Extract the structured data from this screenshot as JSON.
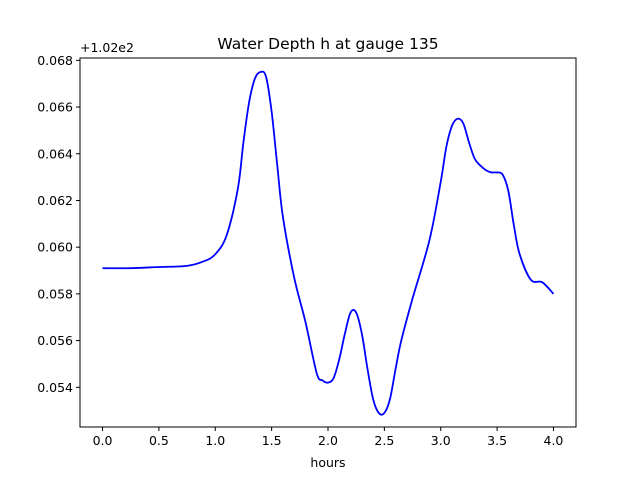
{
  "chart_data": {
    "type": "line",
    "title": "Water Depth h at gauge 135",
    "xlabel": "hours",
    "ylabel": "",
    "offset_label": "+1.02e2",
    "xlim": [
      -0.2,
      4.2
    ],
    "ylim": [
      0.0523,
      0.0681
    ],
    "xticks": [
      0.0,
      0.5,
      1.0,
      1.5,
      2.0,
      2.5,
      3.0,
      3.5,
      4.0
    ],
    "xtick_labels": [
      "0.0",
      "0.5",
      "1.0",
      "1.5",
      "2.0",
      "2.5",
      "3.0",
      "3.5",
      "4.0"
    ],
    "yticks": [
      0.054,
      0.056,
      0.058,
      0.06,
      0.062,
      0.064,
      0.066,
      0.068
    ],
    "ytick_labels": [
      "0.054",
      "0.056",
      "0.058",
      "0.060",
      "0.062",
      "0.064",
      "0.066",
      "0.068"
    ],
    "grid": false,
    "series": [
      {
        "color": "#0000ff",
        "x": [
          0.0,
          0.25,
          0.5,
          0.75,
          0.9,
          1.0,
          1.1,
          1.2,
          1.25,
          1.3,
          1.35,
          1.4,
          1.45,
          1.5,
          1.55,
          1.6,
          1.7,
          1.8,
          1.9,
          1.95,
          2.0,
          2.05,
          2.1,
          2.15,
          2.2,
          2.25,
          2.3,
          2.35,
          2.4,
          2.45,
          2.5,
          2.55,
          2.6,
          2.65,
          2.75,
          2.9,
          3.0,
          3.05,
          3.1,
          3.15,
          3.2,
          3.25,
          3.3,
          3.35,
          3.4,
          3.45,
          3.5,
          3.55,
          3.6,
          3.65,
          3.7,
          3.8,
          3.9,
          4.0
        ],
        "y": [
          0.0591,
          0.0591,
          0.05915,
          0.0592,
          0.0594,
          0.0597,
          0.0605,
          0.0625,
          0.0645,
          0.0662,
          0.0672,
          0.0675,
          0.0673,
          0.0658,
          0.0635,
          0.0613,
          0.0587,
          0.0568,
          0.0546,
          0.0543,
          0.0542,
          0.0544,
          0.0552,
          0.0563,
          0.0572,
          0.0572,
          0.0563,
          0.0548,
          0.0535,
          0.0529,
          0.0529,
          0.0535,
          0.0548,
          0.056,
          0.0578,
          0.0603,
          0.0628,
          0.0643,
          0.0652,
          0.0655,
          0.0653,
          0.0645,
          0.0638,
          0.0635,
          0.0633,
          0.0632,
          0.0632,
          0.0631,
          0.0624,
          0.0609,
          0.0597,
          0.0586,
          0.0585,
          0.058
        ]
      }
    ]
  }
}
